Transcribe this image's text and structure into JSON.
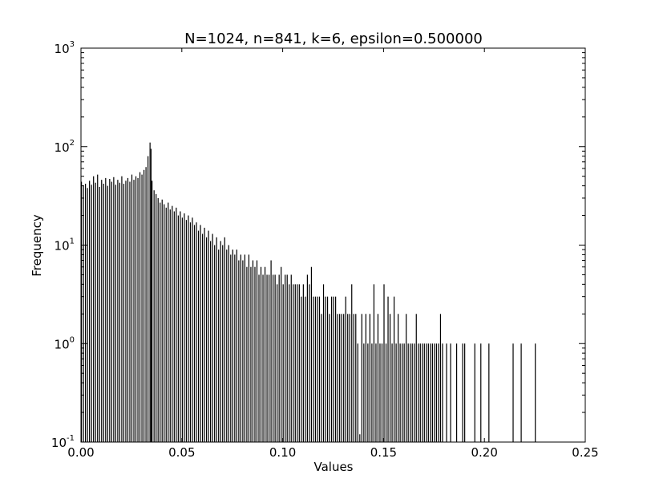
{
  "chart_data": {
    "type": "bar",
    "title": "N=1024, n=841, k=6, epsilon=0.500000",
    "xlabel": "Values",
    "ylabel": "Frequency",
    "xlim": [
      0.0,
      0.25
    ],
    "ylim": [
      0.1,
      1000
    ],
    "yscale": "log",
    "grid": false,
    "legend": "none",
    "x_ticks": [
      "0.00",
      "0.05",
      "0.10",
      "0.15",
      "0.20",
      "0.25"
    ],
    "y_ticks": [
      {
        "base": "10",
        "exp": "-1"
      },
      {
        "base": "10",
        "exp": "0"
      },
      {
        "base": "10",
        "exp": "1"
      },
      {
        "base": "10",
        "exp": "2"
      },
      {
        "base": "10",
        "exp": "3"
      }
    ],
    "bar_color": "#000000",
    "series": [
      {
        "bins": [
          [
            0.0,
            44
          ],
          [
            0.001,
            40
          ],
          [
            0.002,
            42
          ],
          [
            0.003,
            38
          ],
          [
            0.004,
            45
          ],
          [
            0.005,
            41
          ],
          [
            0.006,
            50
          ],
          [
            0.007,
            43
          ],
          [
            0.008,
            52
          ],
          [
            0.009,
            39
          ],
          [
            0.01,
            46
          ],
          [
            0.011,
            42
          ],
          [
            0.012,
            48
          ],
          [
            0.013,
            40
          ],
          [
            0.014,
            47
          ],
          [
            0.015,
            44
          ],
          [
            0.016,
            49
          ],
          [
            0.017,
            41
          ],
          [
            0.018,
            46
          ],
          [
            0.019,
            43
          ],
          [
            0.02,
            50
          ],
          [
            0.021,
            42
          ],
          [
            0.022,
            45
          ],
          [
            0.023,
            48
          ],
          [
            0.024,
            44
          ],
          [
            0.025,
            52
          ],
          [
            0.026,
            46
          ],
          [
            0.027,
            50
          ],
          [
            0.028,
            48
          ],
          [
            0.029,
            55
          ],
          [
            0.03,
            52
          ],
          [
            0.031,
            58
          ],
          [
            0.032,
            62
          ],
          [
            0.033,
            80
          ],
          [
            0.034,
            110
          ],
          [
            0.0345,
            95
          ],
          [
            0.035,
            45
          ],
          [
            0.036,
            36
          ],
          [
            0.037,
            33
          ],
          [
            0.038,
            30
          ],
          [
            0.039,
            27
          ],
          [
            0.04,
            29
          ],
          [
            0.041,
            26
          ],
          [
            0.042,
            24
          ],
          [
            0.043,
            27
          ],
          [
            0.044,
            23
          ],
          [
            0.045,
            25
          ],
          [
            0.046,
            22
          ],
          [
            0.047,
            24
          ],
          [
            0.048,
            20
          ],
          [
            0.049,
            22
          ],
          [
            0.05,
            19
          ],
          [
            0.051,
            21
          ],
          [
            0.052,
            18
          ],
          [
            0.053,
            20
          ],
          [
            0.054,
            17
          ],
          [
            0.055,
            19
          ],
          [
            0.056,
            16
          ],
          [
            0.057,
            17
          ],
          [
            0.058,
            14
          ],
          [
            0.059,
            16
          ],
          [
            0.06,
            13
          ],
          [
            0.061,
            15
          ],
          [
            0.062,
            12
          ],
          [
            0.063,
            14
          ],
          [
            0.064,
            11
          ],
          [
            0.065,
            13
          ],
          [
            0.066,
            10
          ],
          [
            0.067,
            12
          ],
          [
            0.068,
            9
          ],
          [
            0.069,
            11
          ],
          [
            0.07,
            10
          ],
          [
            0.071,
            12
          ],
          [
            0.072,
            9
          ],
          [
            0.073,
            10
          ],
          [
            0.074,
            8
          ],
          [
            0.075,
            9
          ],
          [
            0.076,
            8
          ],
          [
            0.077,
            9
          ],
          [
            0.078,
            7
          ],
          [
            0.079,
            8
          ],
          [
            0.08,
            7
          ],
          [
            0.081,
            8
          ],
          [
            0.082,
            6
          ],
          [
            0.083,
            8
          ],
          [
            0.084,
            6
          ],
          [
            0.085,
            7
          ],
          [
            0.086,
            6
          ],
          [
            0.087,
            7
          ],
          [
            0.088,
            5
          ],
          [
            0.089,
            6
          ],
          [
            0.09,
            5
          ],
          [
            0.091,
            6
          ],
          [
            0.092,
            5
          ],
          [
            0.093,
            5
          ],
          [
            0.094,
            7
          ],
          [
            0.095,
            5
          ],
          [
            0.096,
            5
          ],
          [
            0.097,
            4
          ],
          [
            0.098,
            5
          ],
          [
            0.099,
            6
          ],
          [
            0.1,
            4
          ],
          [
            0.101,
            5
          ],
          [
            0.102,
            5
          ],
          [
            0.103,
            4
          ],
          [
            0.104,
            5
          ],
          [
            0.105,
            4
          ],
          [
            0.106,
            4
          ],
          [
            0.107,
            4
          ],
          [
            0.108,
            4
          ],
          [
            0.109,
            3
          ],
          [
            0.11,
            4
          ],
          [
            0.111,
            3
          ],
          [
            0.112,
            5
          ],
          [
            0.113,
            4
          ],
          [
            0.114,
            6
          ],
          [
            0.115,
            3
          ],
          [
            0.116,
            3
          ],
          [
            0.117,
            3
          ],
          [
            0.118,
            3
          ],
          [
            0.119,
            2
          ],
          [
            0.12,
            4
          ],
          [
            0.121,
            3
          ],
          [
            0.122,
            3
          ],
          [
            0.123,
            2
          ],
          [
            0.124,
            3
          ],
          [
            0.125,
            3
          ],
          [
            0.126,
            3
          ],
          [
            0.127,
            2
          ],
          [
            0.128,
            2
          ],
          [
            0.129,
            2
          ],
          [
            0.13,
            2
          ],
          [
            0.131,
            3
          ],
          [
            0.132,
            2
          ],
          [
            0.133,
            2
          ],
          [
            0.134,
            4
          ],
          [
            0.135,
            2
          ],
          [
            0.136,
            2
          ],
          [
            0.137,
            1
          ],
          [
            0.138,
            0.12
          ],
          [
            0.139,
            2
          ],
          [
            0.14,
            1
          ],
          [
            0.141,
            2
          ],
          [
            0.142,
            1
          ],
          [
            0.143,
            2
          ],
          [
            0.144,
            1
          ],
          [
            0.145,
            4
          ],
          [
            0.146,
            1
          ],
          [
            0.147,
            2
          ],
          [
            0.148,
            1
          ],
          [
            0.149,
            1
          ],
          [
            0.15,
            4
          ],
          [
            0.151,
            1
          ],
          [
            0.152,
            3
          ],
          [
            0.153,
            2
          ],
          [
            0.154,
            1
          ],
          [
            0.155,
            3
          ],
          [
            0.156,
            1
          ],
          [
            0.157,
            2
          ],
          [
            0.158,
            1
          ],
          [
            0.159,
            1
          ],
          [
            0.16,
            1
          ],
          [
            0.161,
            2
          ],
          [
            0.162,
            1
          ],
          [
            0.163,
            1
          ],
          [
            0.164,
            1
          ],
          [
            0.165,
            1
          ],
          [
            0.166,
            2
          ],
          [
            0.167,
            1
          ],
          [
            0.168,
            1
          ],
          [
            0.169,
            1
          ],
          [
            0.17,
            1
          ],
          [
            0.171,
            1
          ],
          [
            0.172,
            1
          ],
          [
            0.173,
            1
          ],
          [
            0.174,
            1
          ],
          [
            0.175,
            1
          ],
          [
            0.176,
            1
          ],
          [
            0.177,
            1
          ],
          [
            0.178,
            2
          ],
          [
            0.179,
            1
          ],
          [
            0.181,
            1
          ],
          [
            0.183,
            1
          ],
          [
            0.186,
            1
          ],
          [
            0.189,
            1
          ],
          [
            0.19,
            1
          ],
          [
            0.195,
            1
          ],
          [
            0.198,
            1
          ],
          [
            0.202,
            1
          ],
          [
            0.214,
            1
          ],
          [
            0.218,
            1
          ],
          [
            0.225,
            1
          ]
        ]
      }
    ]
  }
}
